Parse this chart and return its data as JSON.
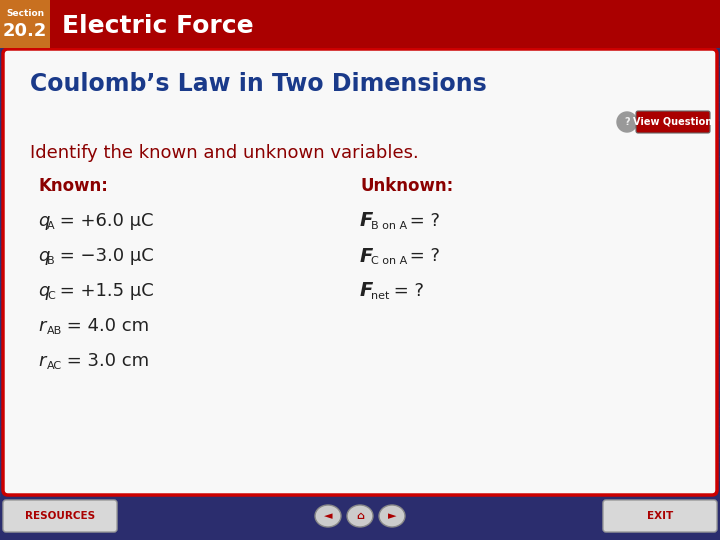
{
  "bg_color": "#2b2d6e",
  "header_bg": "#aa0000",
  "header_text": "Electric Force",
  "header_text_color": "#ffffff",
  "section_label": "Section",
  "section_number": "20.2",
  "section_label_color": "#ffffff",
  "section_number_color": "#ffffff",
  "section_bg": "#c87020",
  "title": "Coulomb’s Law in Two Dimensions",
  "title_color": "#1a3a8a",
  "identify_text": "Identify the known and unknown variables.",
  "identify_color": "#8b0000",
  "known_label": "Known:",
  "unknown_label": "Unknown:",
  "known_color": "#8b0000",
  "unknown_color": "#8b0000",
  "content_bg": "#f8f8f8",
  "content_border": "#cc0000",
  "footer_bg": "#2b2d6e",
  "resources_text": "RESOURCES",
  "exit_text": "EXIT",
  "nav_color": "#aa0000",
  "button_bg": "#d8d8d8",
  "text_color": "#222222",
  "grid_color": "#3a3d7e"
}
